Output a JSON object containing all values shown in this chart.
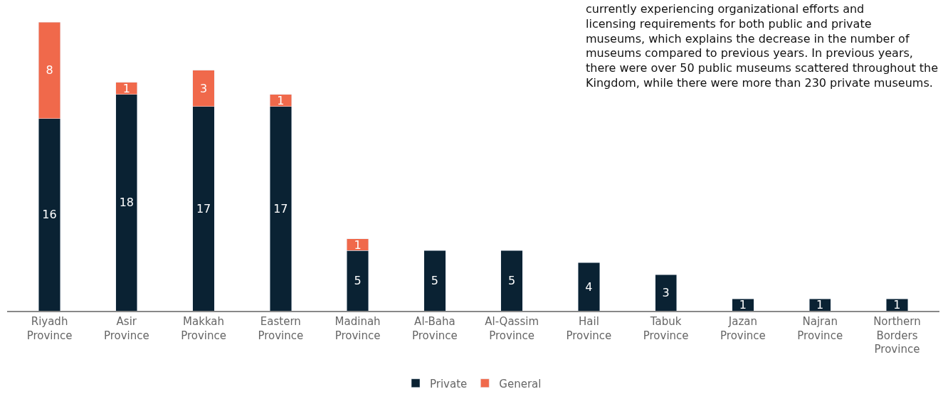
{
  "chart_data": {
    "type": "bar",
    "stacked": true,
    "data_labels": true,
    "legend": "bottom",
    "categories": [
      "Riyadh Province",
      "Asir Province",
      "Makkah Province",
      "Eastern Province",
      "Madinah Province",
      "Al-Baha Province",
      "Al-Qassim Province",
      "Hail Province",
      "Tabuk Province",
      "Jazan Province",
      "Najran Province",
      "Northern Borders Province"
    ],
    "series": [
      {
        "name": "Private",
        "color": "#0a2233",
        "values": [
          16,
          18,
          17,
          17,
          5,
          5,
          5,
          4,
          3,
          1,
          1,
          1
        ]
      },
      {
        "name": "General",
        "color": "#f0694b",
        "values": [
          8,
          1,
          3,
          1,
          1,
          null,
          null,
          null,
          null,
          null,
          null,
          null
        ]
      }
    ],
    "annotations": [
      "currently experiencing organizational efforts and licensing requirements for both public and private museums, which explains the decrease in the number of museums compared to previous years. In previous years, there were over 50 public museums scattered throughout the Kingdom, while there were more than 230 private museums."
    ]
  }
}
